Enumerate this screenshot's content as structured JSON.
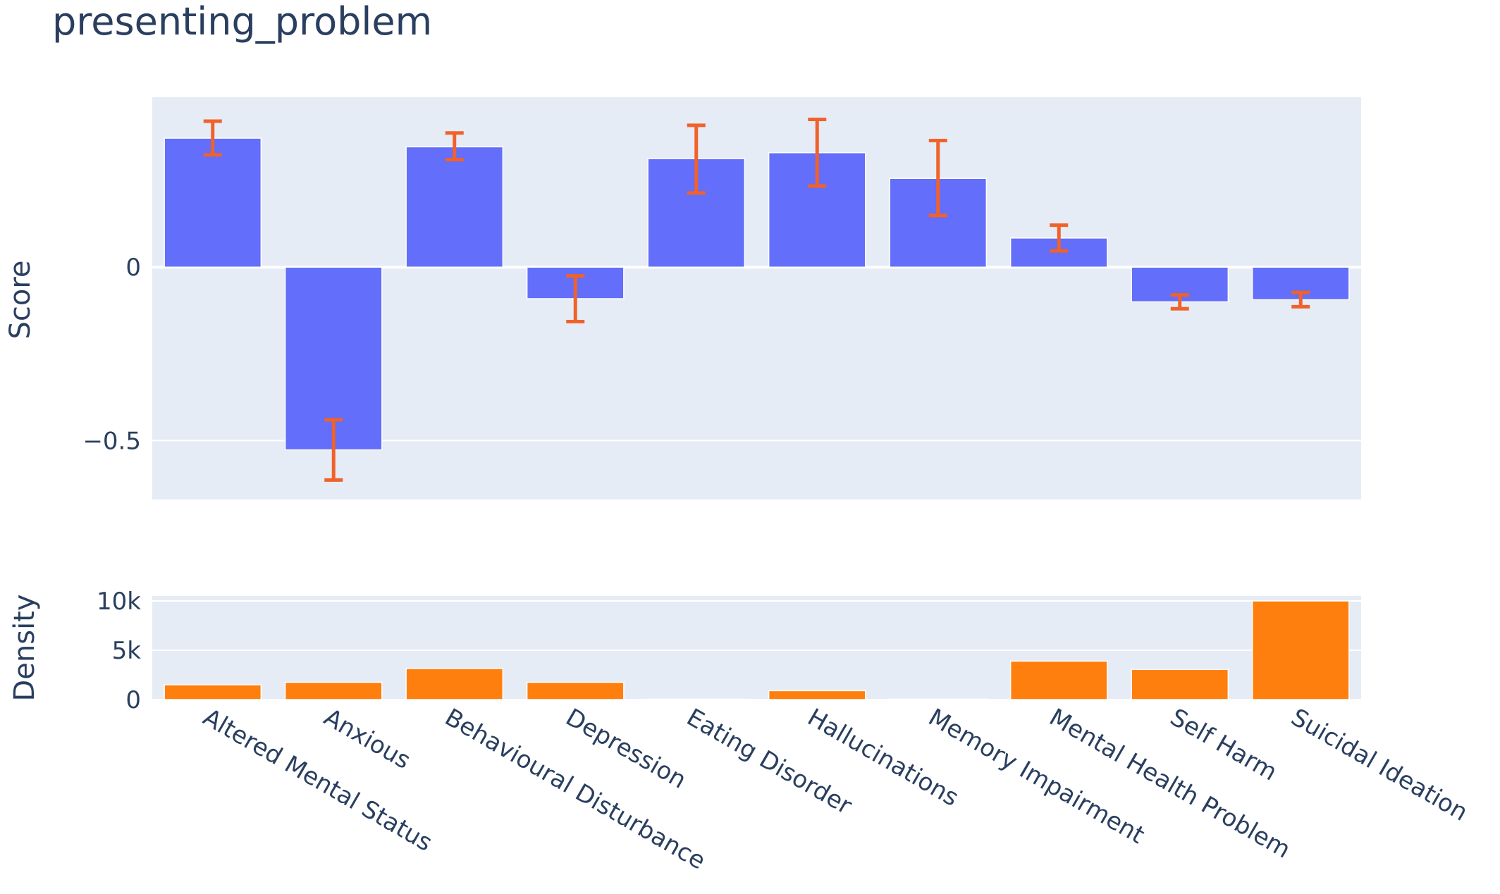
{
  "chart_data": {
    "title": "presenting_problem",
    "categories": [
      "Altered Mental Status",
      "Anxious",
      "Behavioural Disturbance",
      "Depression",
      "Eating Disorder",
      "Hallucinations",
      "Memory Impairment",
      "Mental Health Problem",
      "Self Harm",
      "Suicidal Ideation"
    ],
    "top": {
      "type": "bar",
      "ylabel": "Score",
      "ylim": [
        -0.67,
        0.49
      ],
      "yticks": [
        0,
        -0.5
      ],
      "ytick_labels": [
        "0",
        "−0.5"
      ],
      "values": [
        0.372,
        -0.527,
        0.347,
        -0.091,
        0.313,
        0.33,
        0.256,
        0.084,
        -0.1,
        -0.094
      ],
      "err_high": [
        0.421,
        -0.44,
        0.387,
        -0.025,
        0.409,
        0.426,
        0.365,
        0.121,
        -0.08,
        -0.073
      ],
      "err_low": [
        0.324,
        -0.614,
        0.31,
        -0.157,
        0.214,
        0.234,
        0.149,
        0.047,
        -0.12,
        -0.114
      ],
      "bar_color": "#636efa",
      "error_color": "#f0622a",
      "grid": true
    },
    "bottom": {
      "type": "bar",
      "ylabel": "Density",
      "ylim": [
        0,
        10500
      ],
      "yticks": [
        0,
        5000,
        10000
      ],
      "ytick_labels": [
        "0",
        "5k",
        "10k"
      ],
      "values": [
        1500,
        1750,
        3150,
        1750,
        50,
        900,
        50,
        3900,
        3050,
        10000
      ],
      "bar_color": "#ff7f0e",
      "grid": true
    },
    "plot_bg": "#e5ecf6"
  }
}
